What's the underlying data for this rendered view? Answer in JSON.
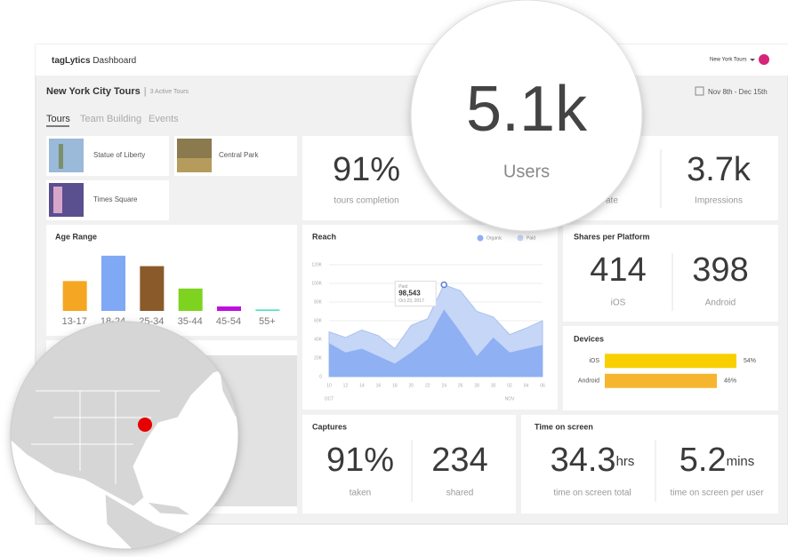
{
  "header": {
    "brand": "tagLytics",
    "product": "Dashboard",
    "account": "New York Tours"
  },
  "page": {
    "title": "New York City Tours",
    "subtitle": "3 Active Tours",
    "date_range": "Nov 8th - Dec 15th"
  },
  "tabs": [
    "Tours",
    "Team Building",
    "Events"
  ],
  "tours": [
    "Statue of Liberty",
    "Central Park",
    "Times Square"
  ],
  "stats": [
    {
      "value": "91%",
      "label": "tours completion"
    },
    {
      "value": "5.1k",
      "label": "Users"
    },
    {
      "label": "ate"
    },
    {
      "value": "3.7k",
      "label": "Impressions"
    }
  ],
  "shares": {
    "title": "Shares per Platform",
    "items": [
      {
        "value": "414",
        "label": "iOS"
      },
      {
        "value": "398",
        "label": "Android"
      }
    ]
  },
  "captures": {
    "title": "Captures",
    "items": [
      {
        "value": "91%",
        "label": "taken"
      },
      {
        "value": "234",
        "label": "shared"
      }
    ]
  },
  "time_on_screen": {
    "title": "Time on screen",
    "items": [
      {
        "value": "34.3",
        "unit": "hrs",
        "label": "time on screen total"
      },
      {
        "value": "5.2",
        "unit": "mins",
        "label": "time on screen per user"
      }
    ]
  },
  "chart_data": [
    {
      "type": "bar",
      "title": "Age Range",
      "categories": [
        "13-17",
        "18-24",
        "25-34",
        "35-44",
        "45-54",
        "55+"
      ],
      "values": [
        20,
        37,
        30,
        15,
        3,
        1
      ],
      "colors": [
        "#f5a623",
        "#7fa8f5",
        "#8b5a2b",
        "#7ed321",
        "#bd10e0",
        "#50e3c2"
      ]
    },
    {
      "type": "area",
      "title": "Reach",
      "categories": [
        "10",
        "12",
        "14",
        "16",
        "18",
        "20",
        "22",
        "24",
        "26",
        "28",
        "30",
        "02",
        "04",
        "06"
      ],
      "x_periods": [
        "OCT",
        "NOV"
      ],
      "series": [
        {
          "name": "Paid",
          "color": "#c6d6f7",
          "values": [
            48000,
            42000,
            50000,
            44000,
            30000,
            55000,
            62000,
            98543,
            92000,
            70000,
            64000,
            45000,
            52000,
            60000
          ]
        },
        {
          "name": "Organic",
          "color": "#8fb0f2",
          "values": [
            36000,
            26000,
            30000,
            22000,
            14000,
            26000,
            40000,
            72000,
            48000,
            22000,
            42000,
            26000,
            30000,
            34000
          ]
        }
      ],
      "ylim": [
        0,
        120000
      ],
      "yticks": [
        0,
        {
          "value": 20000,
          "label": "20K"
        },
        {
          "value": 40000,
          "label": "40K"
        },
        {
          "value": 60000,
          "label": "60K"
        },
        {
          "value": 80000,
          "label": "80K"
        },
        {
          "value": 100000,
          "label": "100K"
        },
        {
          "value": 120000,
          "label": "120K"
        }
      ],
      "grid": true,
      "tooltip": {
        "series": "Paid",
        "value": "98,543",
        "date": "Oct 23, 2017"
      }
    },
    {
      "type": "bar",
      "orientation": "horizontal",
      "title": "Devices",
      "categories": [
        "iOS",
        "Android"
      ],
      "values": [
        54,
        46
      ],
      "value_labels": [
        "54%",
        "46%"
      ],
      "colors": [
        "#f8d000",
        "#f5b52e"
      ]
    }
  ]
}
